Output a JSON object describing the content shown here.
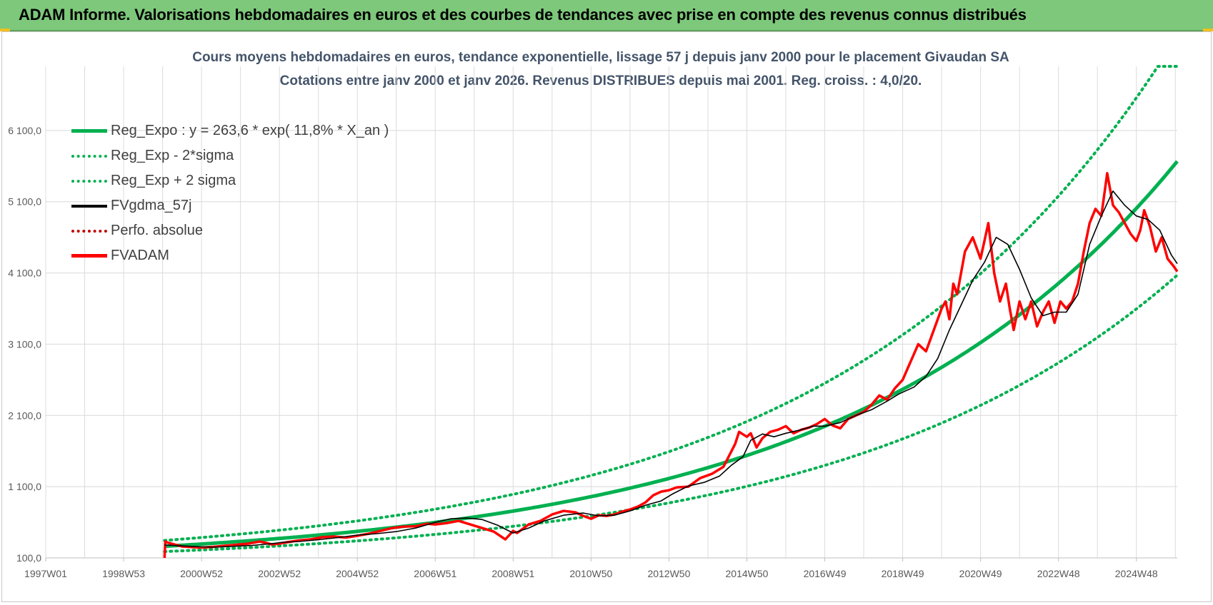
{
  "banner": {
    "title": "ADAM Informe. Valorisations hebdomadaires en euros et des courbes de tendances avec prise en compte des revenus connus distribués"
  },
  "colors": {
    "banner": "#7dc87a",
    "trend": "#00b050",
    "ma": "#000000",
    "fvadam": "#ff0000",
    "perfo": "#c00000",
    "title": "#44546a"
  },
  "chart_data": {
    "type": "line",
    "title": "Cours moyens hebdomadaires en euros, tendance exponentielle, lissage 57 j depuis janv 2000  pour le placement Givaudan SA",
    "subtitle": "Cotations entre janv 2000 et janv 2026. Revenus DISTRIBUES depuis mai 2001. Reg. croiss. : 4,0/20.",
    "x_tick_labels": [
      "1997W01",
      "1998W53",
      "2000W52",
      "2002W52",
      "2004W52",
      "2006W51",
      "2008W51",
      "2010W50",
      "2012W50",
      "2014W50",
      "2016W49",
      "2018W49",
      "2020W49",
      "2022W48",
      "2024W48"
    ],
    "x_ticks_year": [
      1997.0,
      1999.0,
      2001.0,
      2003.0,
      2005.0,
      2007.0,
      2009.0,
      2011.0,
      2013.0,
      2015.0,
      2017.0,
      2019.0,
      2021.0,
      2023.0,
      2025.0
    ],
    "xlim": [
      1997.0,
      2026.05
    ],
    "y_tick_labels": [
      "100,0",
      "1 100,0",
      "2 100,0",
      "3 100,0",
      "4 100,0",
      "5 100,0",
      "6 100,0"
    ],
    "y_ticks": [
      100,
      1100,
      2100,
      3100,
      4100,
      5100,
      6100
    ],
    "ylim": [
      100,
      7000
    ],
    "grid": true,
    "legend_position": "top-left",
    "series": [
      {
        "name": "Reg_Expo : y = 263,6 * exp( 11,8% *  X_an )",
        "key": "trend",
        "style": "solid-thick",
        "color": "#00b050",
        "formula": {
          "a": 263.6,
          "b": 0.118,
          "x0": 2000.05,
          "scale": 1.0
        },
        "x_range": [
          2000.05,
          2026.05
        ]
      },
      {
        "name": "Reg_Exp - 2*sigma",
        "key": "lower",
        "style": "dotted",
        "color": "#00b050",
        "formula": {
          "a": 263.6,
          "b": 0.118,
          "x0": 2000.05,
          "scale": 0.718
        },
        "x_range": [
          2000.05,
          2026.05
        ]
      },
      {
        "name": "Reg_Exp + 2 sigma",
        "key": "upper",
        "style": "dotted",
        "color": "#00b050",
        "formula": {
          "a": 263.6,
          "b": 0.118,
          "x0": 2000.05,
          "scale": 1.31
        },
        "x_range": [
          2000.05,
          2026.05
        ],
        "cap": 7000
      },
      {
        "name": "FVgdma_57j",
        "key": "ma",
        "style": "solid",
        "color": "#000000",
        "x": [
          2000.05,
          2000.3,
          2000.8,
          2001.3,
          2001.8,
          2002.3,
          2002.8,
          2003.1,
          2003.5,
          2004.0,
          2004.5,
          2005.0,
          2005.5,
          2006.0,
          2006.5,
          2007.0,
          2007.4,
          2007.8,
          2008.2,
          2008.6,
          2009.0,
          2009.4,
          2009.8,
          2010.3,
          2010.8,
          2011.2,
          2011.6,
          2012.0,
          2012.4,
          2012.8,
          2013.1,
          2013.5,
          2013.9,
          2014.3,
          2014.6,
          2014.9,
          2015.1,
          2015.4,
          2015.7,
          2016.0,
          2016.4,
          2016.7,
          2017.0,
          2017.4,
          2017.8,
          2018.2,
          2018.6,
          2018.9,
          2019.3,
          2019.6,
          2019.9,
          2020.2,
          2020.5,
          2020.8,
          2021.1,
          2021.4,
          2021.7,
          2022.0,
          2022.3,
          2022.6,
          2022.9,
          2023.2,
          2023.5,
          2023.8,
          2024.1,
          2024.4,
          2024.7,
          2025.0,
          2025.3,
          2025.6,
          2025.9,
          2026.05
        ],
        "y": [
          280,
          275,
          260,
          250,
          262,
          275,
          300,
          320,
          330,
          355,
          385,
          420,
          440,
          470,
          520,
          600,
          650,
          660,
          640,
          560,
          450,
          520,
          620,
          700,
          730,
          690,
          700,
          760,
          840,
          900,
          1000,
          1110,
          1160,
          1250,
          1400,
          1520,
          1750,
          1840,
          1800,
          1850,
          1900,
          1950,
          1950,
          2000,
          2100,
          2180,
          2300,
          2400,
          2500,
          2650,
          2900,
          3300,
          3650,
          4000,
          4250,
          4600,
          4500,
          4150,
          3750,
          3500,
          3550,
          3550,
          3800,
          4500,
          4900,
          5250,
          5050,
          4900,
          4850,
          4700,
          4350,
          4230
        ]
      },
      {
        "name": "Perfo. absolue",
        "key": "perfo",
        "style": "dotted",
        "color": "#c00000"
      },
      {
        "name": "FVADAM",
        "key": "fvadam",
        "style": "solid-thick",
        "color": "#ff0000",
        "x": [
          2000.05,
          2000.07,
          2000.1,
          2000.3,
          2000.5,
          2000.8,
          2001.0,
          2001.3,
          2001.6,
          2001.9,
          2002.2,
          2002.5,
          2002.8,
          2003.0,
          2003.2,
          2003.5,
          2003.8,
          2004.1,
          2004.4,
          2004.7,
          2005.0,
          2005.3,
          2005.6,
          2005.9,
          2006.2,
          2006.5,
          2006.8,
          2007.0,
          2007.3,
          2007.6,
          2007.9,
          2008.2,
          2008.5,
          2008.8,
          2009.0,
          2009.1,
          2009.4,
          2009.7,
          2010.0,
          2010.3,
          2010.6,
          2010.8,
          2011.0,
          2011.2,
          2011.4,
          2011.6,
          2011.8,
          2012.0,
          2012.2,
          2012.4,
          2012.6,
          2012.8,
          2013.0,
          2013.2,
          2013.5,
          2013.8,
          2014.1,
          2014.4,
          2014.7,
          2014.8,
          2015.0,
          2015.1,
          2015.25,
          2015.4,
          2015.6,
          2015.8,
          2016.0,
          2016.2,
          2016.4,
          2016.6,
          2016.8,
          2017.0,
          2017.2,
          2017.4,
          2017.6,
          2017.8,
          2018.0,
          2018.2,
          2018.4,
          2018.6,
          2018.8,
          2019.0,
          2019.2,
          2019.4,
          2019.6,
          2019.8,
          2020.0,
          2020.1,
          2020.2,
          2020.3,
          2020.4,
          2020.6,
          2020.8,
          2021.0,
          2021.2,
          2021.35,
          2021.5,
          2021.65,
          2021.75,
          2021.85,
          2022.0,
          2022.15,
          2022.3,
          2022.45,
          2022.6,
          2022.75,
          2022.9,
          2023.05,
          2023.2,
          2023.35,
          2023.5,
          2023.65,
          2023.8,
          2023.95,
          2024.1,
          2024.25,
          2024.4,
          2024.55,
          2024.7,
          2024.85,
          2025.0,
          2025.1,
          2025.2,
          2025.35,
          2025.5,
          2025.65,
          2025.8,
          2025.95,
          2026.05
        ],
        "y": [
          100,
          330,
          320,
          290,
          260,
          250,
          245,
          255,
          270,
          285,
          300,
          330,
          290,
          300,
          320,
          345,
          360,
          390,
          400,
          385,
          410,
          440,
          480,
          520,
          540,
          545,
          580,
          570,
          590,
          620,
          570,
          520,
          470,
          360,
          480,
          450,
          570,
          620,
          710,
          760,
          740,
          690,
          650,
          700,
          690,
          710,
          750,
          780,
          820,
          880,
          980,
          1030,
          1050,
          1090,
          1100,
          1220,
          1280,
          1380,
          1700,
          1870,
          1800,
          1850,
          1650,
          1780,
          1870,
          1900,
          1950,
          1850,
          1900,
          1930,
          1980,
          2050,
          1960,
          1920,
          2050,
          2100,
          2150,
          2250,
          2380,
          2320,
          2480,
          2600,
          2850,
          3100,
          3000,
          3300,
          3600,
          3700,
          3450,
          3950,
          3800,
          4400,
          4600,
          4300,
          4800,
          4100,
          3700,
          3950,
          3600,
          3300,
          3700,
          3450,
          3700,
          3350,
          3550,
          3700,
          3400,
          3700,
          3600,
          3700,
          3950,
          4400,
          4800,
          5000,
          4900,
          5500,
          5050,
          4950,
          4800,
          4650,
          4550,
          4700,
          4980,
          4750,
          4400,
          4600,
          4300,
          4200,
          4120
        ]
      }
    ]
  }
}
